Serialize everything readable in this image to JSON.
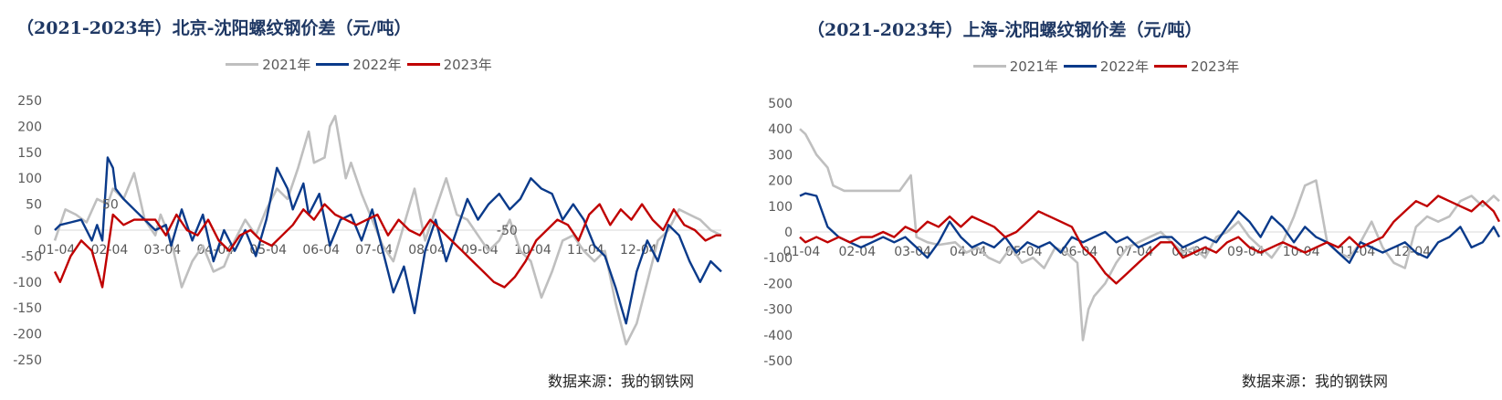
{
  "chart_data": [
    {
      "type": "line",
      "title": "（2021-2023年）北京-沈阳螺纹钢价差（元/吨）",
      "xlabel": "",
      "ylabel": "",
      "ylim": [
        -250,
        250
      ],
      "yticks": [
        250,
        200,
        150,
        100,
        50,
        0,
        -50,
        -100,
        -150,
        -200,
        -250
      ],
      "x_ticks": [
        "01-04",
        "02-04",
        "03-04",
        "04-04",
        "05-04",
        "06-04",
        "07-04",
        "08-04",
        "09-04",
        "10-04",
        "11-04",
        "12-04"
      ],
      "annotations": [
        {
          "text": "50",
          "x": 1.05,
          "y": 50
        },
        {
          "text": "-50",
          "x": 8.55,
          "y": 0
        }
      ],
      "source": "数据来源：我的钢铁网",
      "legend_position": "top-center",
      "series": [
        {
          "name": "2021年",
          "color": "#bfbfbf",
          "x": [
            0,
            0.2,
            0.4,
            0.6,
            0.8,
            1,
            1.1,
            1.3,
            1.5,
            1.7,
            1.9,
            2,
            2.2,
            2.4,
            2.6,
            2.8,
            3,
            3.2,
            3.4,
            3.6,
            3.8,
            4,
            4.2,
            4.4,
            4.6,
            4.8,
            4.9,
            5.1,
            5.2,
            5.3,
            5.5,
            5.6,
            5.8,
            6,
            6.2,
            6.4,
            6.6,
            6.8,
            7,
            7.2,
            7.4,
            7.6,
            7.8,
            8,
            8.2,
            8.4,
            8.6,
            8.8,
            9,
            9.2,
            9.4,
            9.6,
            9.8,
            10,
            10.2,
            10.4,
            10.6,
            10.8,
            11,
            11.2,
            11.4,
            11.6,
            11.8,
            12,
            12.2,
            12.4,
            12.6
          ],
          "values": [
            -20,
            40,
            30,
            15,
            60,
            50,
            80,
            60,
            110,
            20,
            -10,
            30,
            -20,
            -110,
            -60,
            -30,
            -80,
            -70,
            -20,
            20,
            -10,
            40,
            80,
            60,
            120,
            190,
            130,
            140,
            200,
            220,
            100,
            130,
            70,
            20,
            -30,
            -60,
            10,
            80,
            -20,
            40,
            100,
            30,
            20,
            -10,
            -40,
            -20,
            20,
            -40,
            -60,
            -130,
            -80,
            -20,
            -10,
            -40,
            -60,
            -40,
            -140,
            -220,
            -180,
            -100,
            -20,
            0,
            40,
            30,
            20,
            0,
            -10
          ]
        },
        {
          "name": "2022年",
          "color": "#0a3a8a",
          "x": [
            0,
            0.1,
            0.3,
            0.5,
            0.7,
            0.8,
            0.9,
            1,
            1.1,
            1.15,
            1.3,
            1.5,
            1.7,
            1.9,
            2.1,
            2.2,
            2.4,
            2.6,
            2.8,
            3,
            3.2,
            3.4,
            3.6,
            3.8,
            4,
            4.2,
            4.4,
            4.5,
            4.7,
            4.8,
            5,
            5.2,
            5.4,
            5.6,
            5.8,
            6,
            6.2,
            6.4,
            6.6,
            6.8,
            7,
            7.2,
            7.4,
            7.6,
            7.8,
            8,
            8.2,
            8.4,
            8.6,
            8.8,
            9,
            9.2,
            9.4,
            9.6,
            9.8,
            10,
            10.2,
            10.4,
            10.6,
            10.8,
            11,
            11.2,
            11.4,
            11.6,
            11.8,
            12,
            12.2,
            12.4,
            12.6
          ],
          "values": [
            0,
            10,
            15,
            20,
            -20,
            10,
            -20,
            140,
            120,
            80,
            60,
            40,
            20,
            0,
            10,
            -30,
            40,
            -20,
            30,
            -60,
            0,
            -40,
            0,
            -50,
            20,
            120,
            80,
            40,
            90,
            30,
            70,
            -30,
            20,
            30,
            -20,
            40,
            -40,
            -120,
            -70,
            -160,
            -40,
            20,
            -60,
            0,
            60,
            20,
            50,
            70,
            40,
            60,
            100,
            80,
            70,
            20,
            50,
            20,
            -30,
            -50,
            -110,
            -180,
            -80,
            -20,
            -60,
            10,
            -10,
            -60,
            -100,
            -60,
            -80
          ]
        },
        {
          "name": "2023年",
          "color": "#c00000",
          "x": [
            0,
            0.1,
            0.3,
            0.5,
            0.7,
            0.9,
            1.1,
            1.3,
            1.5,
            1.7,
            1.9,
            2.1,
            2.3,
            2.5,
            2.7,
            2.9,
            3.1,
            3.3,
            3.5,
            3.7,
            3.9,
            4.1,
            4.3,
            4.5,
            4.7,
            4.9,
            5.1,
            5.3,
            5.5,
            5.7,
            5.9,
            6.1,
            6.3,
            6.5,
            6.7,
            6.9,
            7.1,
            7.3,
            7.5,
            7.7,
            7.9,
            8.1,
            8.3,
            8.5,
            8.7,
            8.9,
            9.1,
            9.3,
            9.5,
            9.7,
            9.9,
            10.1,
            10.3,
            10.5,
            10.7,
            10.9,
            11.1,
            11.3,
            11.5,
            11.7,
            11.9,
            12.1,
            12.3,
            12.5,
            12.6
          ],
          "values": [
            -80,
            -100,
            -50,
            -20,
            -40,
            -110,
            30,
            10,
            20,
            20,
            20,
            -10,
            30,
            0,
            -10,
            20,
            -20,
            -40,
            -10,
            0,
            -20,
            -30,
            -10,
            10,
            40,
            20,
            50,
            30,
            20,
            10,
            20,
            30,
            -10,
            20,
            0,
            -10,
            20,
            0,
            -20,
            -40,
            -60,
            -80,
            -100,
            -110,
            -90,
            -60,
            -20,
            0,
            20,
            10,
            -20,
            30,
            50,
            10,
            40,
            20,
            50,
            20,
            0,
            40,
            10,
            0,
            -20,
            -10,
            -10
          ]
        }
      ]
    },
    {
      "type": "line",
      "title": "（2021-2023年）上海-沈阳螺纹钢价差（元/吨）",
      "xlabel": "",
      "ylabel": "",
      "ylim": [
        -500,
        500
      ],
      "yticks": [
        500,
        400,
        300,
        200,
        100,
        0,
        -100,
        -200,
        -300,
        -400,
        -500
      ],
      "x_ticks": [
        "01-04",
        "02-04",
        "03-04",
        "04-04",
        "05-04",
        "06-04",
        "07-04",
        "08-04",
        "09-04",
        "10-04",
        "11-04",
        "12-04"
      ],
      "annotations": [],
      "source": "数据来源：我的钢铁网",
      "legend_position": "top-center",
      "series": [
        {
          "name": "2021年",
          "color": "#bfbfbf",
          "x": [
            0,
            0.1,
            0.3,
            0.5,
            0.6,
            0.8,
            1,
            1.2,
            1.5,
            1.8,
            2,
            2.1,
            2.3,
            2.5,
            2.8,
            3,
            3.2,
            3.4,
            3.6,
            3.8,
            4,
            4.2,
            4.4,
            4.6,
            4.8,
            5,
            5.1,
            5.2,
            5.3,
            5.5,
            5.7,
            5.9,
            6.1,
            6.3,
            6.5,
            6.7,
            6.9,
            7.1,
            7.3,
            7.5,
            7.7,
            7.9,
            8.1,
            8.3,
            8.5,
            8.7,
            8.9,
            9.1,
            9.3,
            9.5,
            9.7,
            9.9,
            10.1,
            10.3,
            10.5,
            10.7,
            10.9,
            11.1,
            11.3,
            11.5,
            11.7,
            11.9,
            12.1,
            12.3,
            12.5,
            12.6
          ],
          "values": [
            400,
            380,
            300,
            250,
            180,
            160,
            160,
            160,
            160,
            160,
            220,
            -20,
            -40,
            -50,
            -40,
            -80,
            -60,
            -100,
            -120,
            -60,
            -120,
            -100,
            -140,
            -60,
            -80,
            -120,
            -420,
            -300,
            -250,
            -200,
            -120,
            -60,
            -40,
            -20,
            0,
            -40,
            -80,
            -60,
            -100,
            -20,
            0,
            40,
            -20,
            -60,
            -100,
            -40,
            60,
            180,
            200,
            -40,
            -80,
            -100,
            -40,
            40,
            -60,
            -120,
            -140,
            20,
            60,
            40,
            60,
            120,
            140,
            100,
            140,
            120
          ]
        },
        {
          "name": "2022年",
          "color": "#0a3a8a",
          "x": [
            0,
            0.1,
            0.3,
            0.5,
            0.7,
            0.9,
            1.1,
            1.3,
            1.5,
            1.7,
            1.9,
            2.1,
            2.3,
            2.5,
            2.7,
            2.9,
            3.1,
            3.3,
            3.5,
            3.7,
            3.9,
            4.1,
            4.3,
            4.5,
            4.7,
            4.9,
            5.1,
            5.3,
            5.5,
            5.7,
            5.9,
            6.1,
            6.3,
            6.5,
            6.7,
            6.9,
            7.1,
            7.3,
            7.5,
            7.7,
            7.9,
            8.1,
            8.3,
            8.5,
            8.7,
            8.9,
            9.1,
            9.3,
            9.5,
            9.7,
            9.9,
            10.1,
            10.3,
            10.5,
            10.7,
            10.9,
            11.1,
            11.3,
            11.5,
            11.7,
            11.9,
            12.1,
            12.3,
            12.5,
            12.6
          ],
          "values": [
            140,
            150,
            140,
            20,
            -20,
            -40,
            -60,
            -40,
            -20,
            -40,
            -20,
            -60,
            -100,
            -40,
            40,
            -20,
            -60,
            -40,
            -60,
            -20,
            -80,
            -40,
            -60,
            -40,
            -80,
            -20,
            -40,
            -20,
            0,
            -40,
            -20,
            -60,
            -40,
            -20,
            -20,
            -60,
            -40,
            -20,
            -40,
            20,
            80,
            40,
            -20,
            60,
            20,
            -40,
            20,
            -20,
            -40,
            -80,
            -120,
            -40,
            -60,
            -80,
            -60,
            -40,
            -80,
            -100,
            -40,
            -20,
            20,
            -60,
            -40,
            20,
            -20
          ]
        },
        {
          "name": "2023年",
          "color": "#c00000",
          "x": [
            0,
            0.1,
            0.3,
            0.5,
            0.7,
            0.9,
            1.1,
            1.3,
            1.5,
            1.7,
            1.9,
            2.1,
            2.3,
            2.5,
            2.7,
            2.9,
            3.1,
            3.3,
            3.5,
            3.7,
            3.9,
            4.1,
            4.3,
            4.5,
            4.7,
            4.9,
            5.1,
            5.3,
            5.5,
            5.7,
            5.9,
            6.1,
            6.3,
            6.5,
            6.7,
            6.9,
            7.1,
            7.3,
            7.5,
            7.7,
            7.9,
            8.1,
            8.3,
            8.5,
            8.7,
            8.9,
            9.1,
            9.3,
            9.5,
            9.7,
            9.9,
            10.1,
            10.3,
            10.5,
            10.7,
            10.9,
            11.1,
            11.3,
            11.5,
            11.7,
            11.9,
            12.1,
            12.3,
            12.5,
            12.6
          ],
          "values": [
            -20,
            -40,
            -20,
            -40,
            -20,
            -40,
            -20,
            -20,
            0,
            -20,
            20,
            0,
            40,
            20,
            60,
            20,
            60,
            40,
            20,
            -20,
            0,
            40,
            80,
            60,
            40,
            20,
            -60,
            -100,
            -160,
            -200,
            -160,
            -120,
            -80,
            -40,
            -40,
            -100,
            -80,
            -60,
            -80,
            -40,
            -20,
            -60,
            -80,
            -60,
            -40,
            -60,
            -80,
            -60,
            -40,
            -60,
            -20,
            -60,
            -40,
            -20,
            40,
            80,
            120,
            100,
            140,
            120,
            100,
            80,
            120,
            80,
            40
          ]
        }
      ]
    }
  ]
}
